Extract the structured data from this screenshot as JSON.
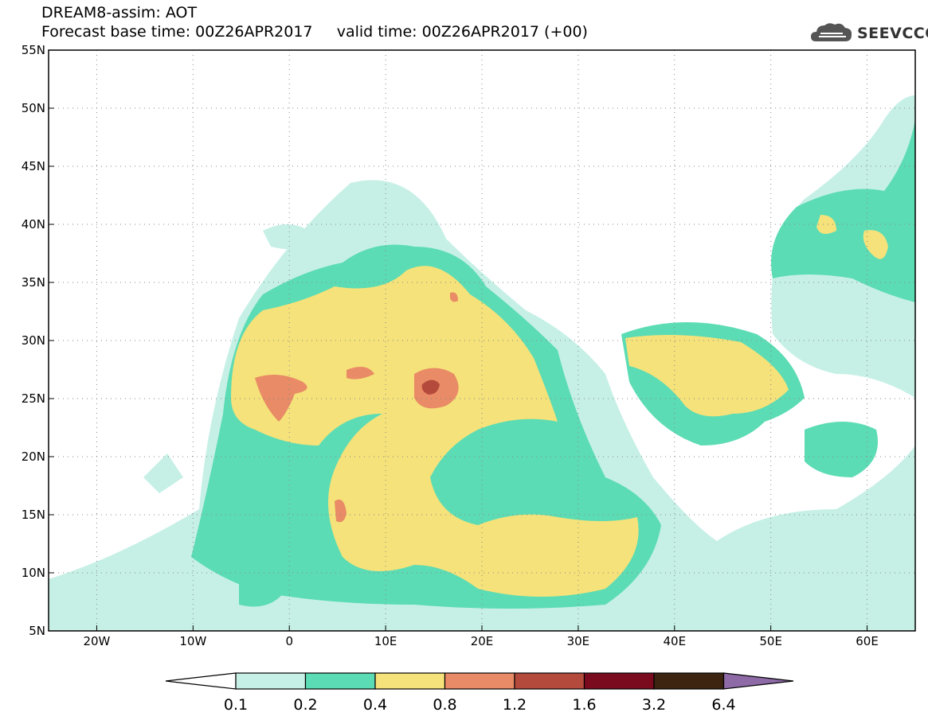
{
  "header": {
    "line1": "DREAM8-assim: AOT",
    "line2": "Forecast base time: 00Z26APR2017     valid time: 00Z26APR2017 (+00)"
  },
  "logo": {
    "text": "SEEVCCC",
    "icon": "cloud-logo-icon"
  },
  "map": {
    "variable": "AOT",
    "lon_range": [
      -25,
      65
    ],
    "lat_range": [
      5,
      55
    ],
    "grid": "dotted",
    "lat_ticks": [
      {
        "value": 55,
        "label": "55N"
      },
      {
        "value": 50,
        "label": "50N"
      },
      {
        "value": 45,
        "label": "45N"
      },
      {
        "value": 40,
        "label": "40N"
      },
      {
        "value": 35,
        "label": "35N"
      },
      {
        "value": 30,
        "label": "30N"
      },
      {
        "value": 25,
        "label": "25N"
      },
      {
        "value": 20,
        "label": "20N"
      },
      {
        "value": 15,
        "label": "15N"
      },
      {
        "value": 10,
        "label": "10N"
      },
      {
        "value": 5,
        "label": "5N"
      }
    ],
    "lon_ticks": [
      {
        "value": -20,
        "label": "20W"
      },
      {
        "value": -10,
        "label": "10W"
      },
      {
        "value": 0,
        "label": "0"
      },
      {
        "value": 10,
        "label": "10E"
      },
      {
        "value": 20,
        "label": "20E"
      },
      {
        "value": 30,
        "label": "30E"
      },
      {
        "value": 40,
        "label": "40E"
      },
      {
        "value": 50,
        "label": "50E"
      },
      {
        "value": 60,
        "label": "60E"
      }
    ]
  },
  "colorbar": {
    "levels": [
      "0.1",
      "0.2",
      "0.4",
      "0.8",
      "1.2",
      "1.6",
      "3.2",
      "6.4"
    ],
    "colors": [
      "#ffffff",
      "#c6f0e6",
      "#5cdcb4",
      "#f5e27a",
      "#e88b66",
      "#b44a3c",
      "#7a0a1e",
      "#3c2410",
      "#8e6aa6"
    ]
  }
}
